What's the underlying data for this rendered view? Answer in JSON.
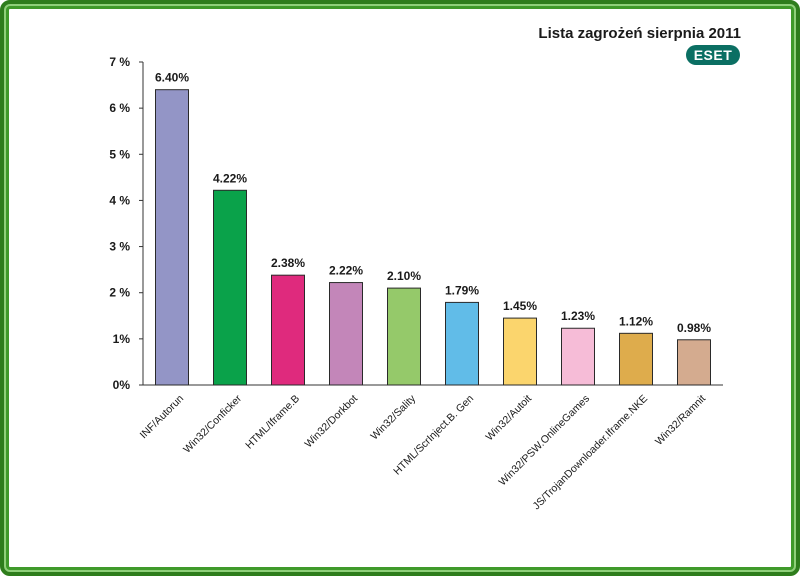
{
  "chart_data": {
    "type": "bar",
    "title": "Lista zagrożeń sierpnia 2011",
    "logo": "ESET",
    "categories": [
      "INF/Autorun",
      "Win32/Conficker",
      "HTML/Iframe.B",
      "Win32/Dorkbot",
      "Win32/Sality",
      "HTML/ScrInject.B. Gen",
      "Win32/Autoit",
      "Win32/PSW.OnlineGames",
      "JS/TrojanDownloader.Iframe.NKE",
      "Win32/Ramnit"
    ],
    "values": [
      6.4,
      4.22,
      2.38,
      2.22,
      2.1,
      1.79,
      1.45,
      1.23,
      1.12,
      0.98
    ],
    "data_labels": [
      "6.40%",
      "4.22%",
      "2.38%",
      "2.22%",
      "2.10%",
      "1.79%",
      "1.45%",
      "1.23%",
      "1.12%",
      "0.98%"
    ],
    "colors": [
      "#9395c6",
      "#0aa24a",
      "#df2a7d",
      "#c386b9",
      "#95c96a",
      "#61bce8",
      "#fbd56d",
      "#f6bcd7",
      "#deac4c",
      "#d4ab8f"
    ],
    "ylim": [
      0,
      7
    ],
    "yticks": [
      0,
      1,
      2,
      3,
      4,
      5,
      6,
      7
    ],
    "ytick_labels": [
      "0%",
      "1%",
      "2 %",
      "3 %",
      "4 %",
      "5 %",
      "6 %",
      "7 %"
    ],
    "xlabel": "",
    "ylabel": "",
    "grid": false,
    "legend": "none"
  },
  "colors": {
    "frame": "#2e7d1c",
    "logo": "#0b6f63"
  }
}
